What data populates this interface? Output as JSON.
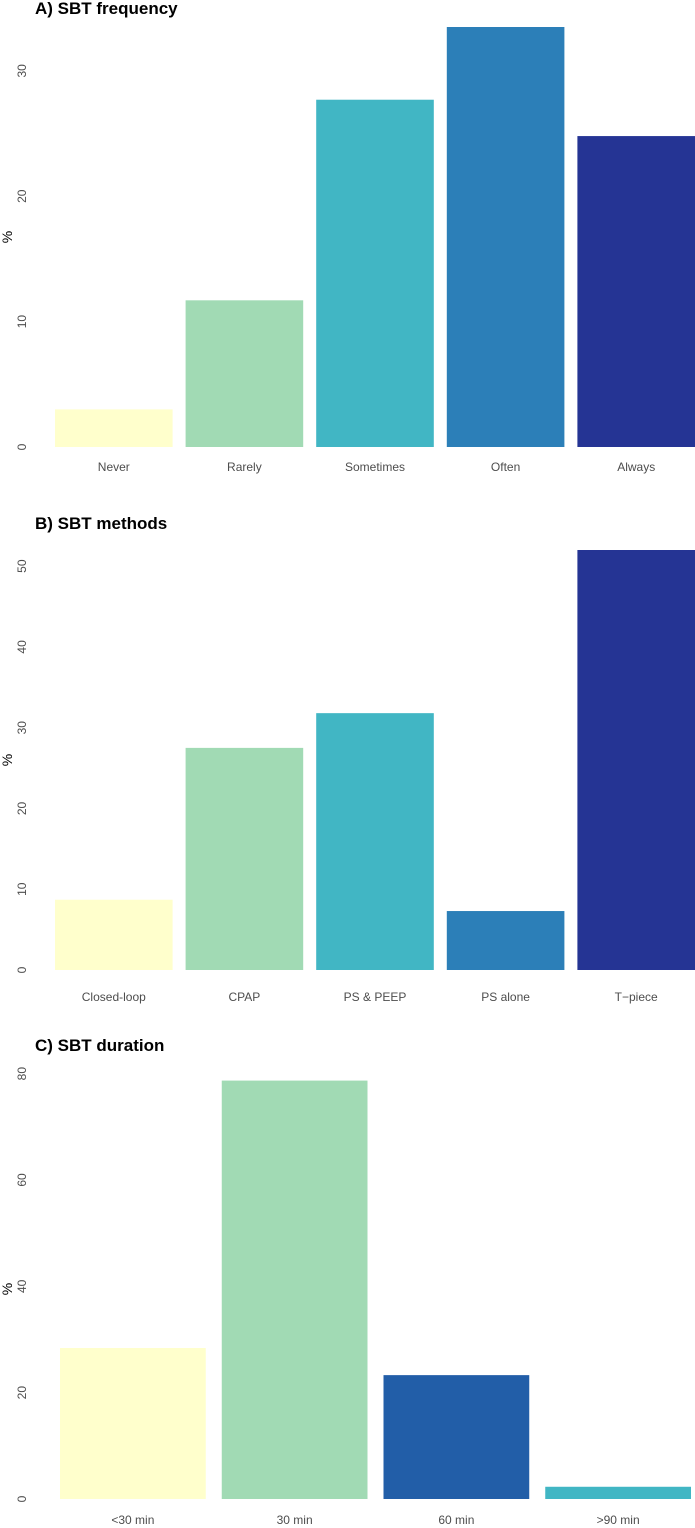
{
  "chart_data": [
    {
      "type": "bar",
      "title": "A) SBT frequency",
      "xlabel": "",
      "ylabel": "%",
      "ylim": [
        0,
        33.5
      ],
      "yticks": [
        0,
        10,
        20,
        30
      ],
      "grid": false,
      "categories": [
        "Never",
        "Rarely",
        "Sometimes",
        "Often",
        "Always"
      ],
      "values": [
        3.0,
        11.7,
        27.7,
        33.5,
        24.8
      ],
      "colors": [
        "#ffffcc",
        "#a1dab4",
        "#41b6c4",
        "#2c7fb8",
        "#253494"
      ]
    },
    {
      "type": "bar",
      "title": "B) SBT methods",
      "xlabel": "",
      "ylabel": "%",
      "ylim": [
        0,
        52
      ],
      "yticks": [
        0,
        10,
        20,
        30,
        40,
        50
      ],
      "grid": false,
      "categories": [
        "Closed-loop",
        "CPAP",
        "PS & PEEP",
        "PS alone",
        "T−piece"
      ],
      "values": [
        8.7,
        27.5,
        31.8,
        7.3,
        52.0
      ],
      "colors": [
        "#ffffcc",
        "#a1dab4",
        "#41b6c4",
        "#2c7fb8",
        "#253494"
      ]
    },
    {
      "type": "bar",
      "title": "C) SBT duration",
      "xlabel": "",
      "ylabel": "%",
      "ylim": [
        0,
        79
      ],
      "yticks": [
        0,
        20,
        40,
        60,
        80
      ],
      "grid": false,
      "categories": [
        "<30 min",
        "30 min",
        "60 min",
        ">90 min"
      ],
      "values": [
        28.4,
        78.7,
        23.3,
        2.3
      ],
      "colors": [
        "#ffffcc",
        "#a1dab4",
        "#225ea8",
        "#41b6c4"
      ]
    }
  ]
}
